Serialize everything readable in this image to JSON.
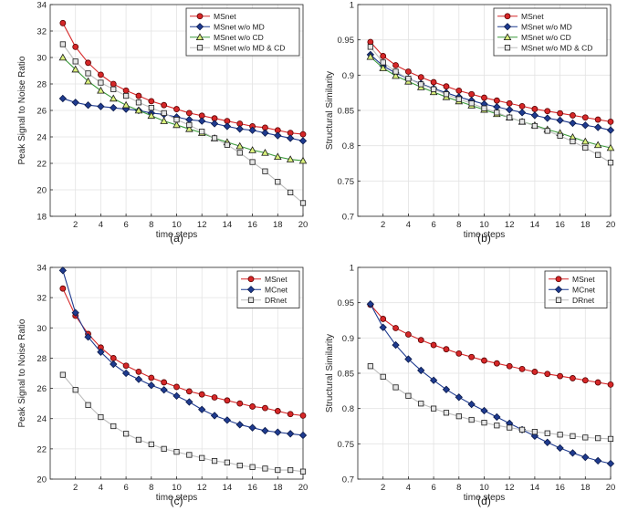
{
  "chart_data": [
    {
      "type": "line",
      "panel": "(a)",
      "xlabel": "time steps",
      "ylabel": "Peak Signal to Noise Ratio",
      "xlim": [
        0,
        20
      ],
      "ylim": [
        18,
        34
      ],
      "xticks": [
        2,
        4,
        6,
        8,
        10,
        12,
        14,
        16,
        18,
        20
      ],
      "yticks": [
        18,
        20,
        22,
        24,
        26,
        28,
        30,
        32,
        34
      ],
      "grid": true,
      "legend": "top-right",
      "x": [
        1,
        2,
        3,
        4,
        5,
        6,
        7,
        8,
        9,
        10,
        11,
        12,
        13,
        14,
        15,
        16,
        17,
        18,
        19,
        20
      ],
      "series": [
        {
          "name": "MSnet",
          "color": "#d62728",
          "marker": "circle",
          "fill": "#d62728",
          "values": [
            32.6,
            30.8,
            29.6,
            28.7,
            28.0,
            27.5,
            27.1,
            26.7,
            26.4,
            26.1,
            25.8,
            25.6,
            25.4,
            25.2,
            25.0,
            24.8,
            24.7,
            24.5,
            24.3,
            24.2
          ]
        },
        {
          "name": "MSnet w/o MD",
          "color": "#1f3b8f",
          "marker": "diamond",
          "fill": "#1f3b8f",
          "values": [
            26.9,
            26.6,
            26.4,
            26.3,
            26.2,
            26.1,
            26.0,
            25.8,
            25.7,
            25.5,
            25.3,
            25.2,
            25.0,
            24.8,
            24.6,
            24.5,
            24.3,
            24.1,
            23.9,
            23.7
          ]
        },
        {
          "name": "MSnet w/o CD",
          "color": "#3a9a3a",
          "marker": "triangle",
          "fill": "#d9f07c",
          "values": [
            30.0,
            29.1,
            28.2,
            27.5,
            26.9,
            26.4,
            26.0,
            25.6,
            25.2,
            24.9,
            24.6,
            24.3,
            23.9,
            23.6,
            23.3,
            23.0,
            22.8,
            22.5,
            22.3,
            22.2
          ]
        },
        {
          "name": "MSnet w/o MD & CD",
          "color": "#bdbdbd",
          "marker": "square",
          "fill": "#e6e6e6",
          "values": [
            31.0,
            29.7,
            28.8,
            28.1,
            27.6,
            27.1,
            26.6,
            26.2,
            25.8,
            25.3,
            24.9,
            24.4,
            23.9,
            23.4,
            22.8,
            22.1,
            21.4,
            20.6,
            19.8,
            19.0
          ]
        }
      ]
    },
    {
      "type": "line",
      "panel": "(b)",
      "xlabel": "time steps",
      "ylabel": "Structural Similarity",
      "xlim": [
        0,
        20
      ],
      "ylim": [
        0.7,
        1.0
      ],
      "xticks": [
        2,
        4,
        6,
        8,
        10,
        12,
        14,
        16,
        18,
        20
      ],
      "yticks": [
        0.7,
        0.75,
        0.8,
        0.85,
        0.9,
        0.95,
        1.0
      ],
      "ytick_labels": [
        "0.7",
        "0.75",
        "0.8",
        "0.85",
        "0.9",
        "0.95",
        "1"
      ],
      "grid": true,
      "legend": "top-right",
      "x": [
        1,
        2,
        3,
        4,
        5,
        6,
        7,
        8,
        9,
        10,
        11,
        12,
        13,
        14,
        15,
        16,
        17,
        18,
        19,
        20
      ],
      "series": [
        {
          "name": "MSnet",
          "color": "#d62728",
          "marker": "circle",
          "fill": "#d62728",
          "values": [
            0.947,
            0.927,
            0.914,
            0.905,
            0.897,
            0.89,
            0.884,
            0.878,
            0.873,
            0.868,
            0.864,
            0.86,
            0.856,
            0.852,
            0.849,
            0.846,
            0.843,
            0.84,
            0.837,
            0.834
          ]
        },
        {
          "name": "MSnet w/o MD",
          "color": "#1f3b8f",
          "marker": "diamond",
          "fill": "#1f3b8f",
          "values": [
            0.929,
            0.913,
            0.903,
            0.895,
            0.888,
            0.881,
            0.875,
            0.869,
            0.864,
            0.859,
            0.855,
            0.851,
            0.847,
            0.843,
            0.839,
            0.836,
            0.832,
            0.829,
            0.826,
            0.822
          ]
        },
        {
          "name": "MSnet w/o CD",
          "color": "#3a9a3a",
          "marker": "triangle",
          "fill": "#d9f07c",
          "values": [
            0.926,
            0.91,
            0.899,
            0.891,
            0.883,
            0.876,
            0.869,
            0.863,
            0.857,
            0.851,
            0.845,
            0.84,
            0.834,
            0.829,
            0.823,
            0.818,
            0.812,
            0.806,
            0.801,
            0.797
          ]
        },
        {
          "name": "MSnet w/o MD & CD",
          "color": "#bdbdbd",
          "marker": "square",
          "fill": "#e6e6e6",
          "values": [
            0.94,
            0.918,
            0.905,
            0.895,
            0.887,
            0.88,
            0.873,
            0.866,
            0.86,
            0.853,
            0.847,
            0.84,
            0.834,
            0.828,
            0.821,
            0.814,
            0.806,
            0.797,
            0.787,
            0.776
          ]
        }
      ]
    },
    {
      "type": "line",
      "panel": "(c)",
      "xlabel": "time steps",
      "ylabel": "Peak Signal to Noise Ratio",
      "xlim": [
        0,
        20
      ],
      "ylim": [
        20,
        34
      ],
      "xticks": [
        2,
        4,
        6,
        8,
        10,
        12,
        14,
        16,
        18,
        20
      ],
      "yticks": [
        20,
        22,
        24,
        26,
        28,
        30,
        32,
        34
      ],
      "grid": true,
      "legend": "top-right",
      "x": [
        1,
        2,
        3,
        4,
        5,
        6,
        7,
        8,
        9,
        10,
        11,
        12,
        13,
        14,
        15,
        16,
        17,
        18,
        19,
        20
      ],
      "series": [
        {
          "name": "MSnet",
          "color": "#d62728",
          "marker": "circle",
          "fill": "#d62728",
          "values": [
            32.6,
            30.8,
            29.6,
            28.7,
            28.0,
            27.5,
            27.1,
            26.7,
            26.4,
            26.1,
            25.8,
            25.6,
            25.4,
            25.2,
            25.0,
            24.8,
            24.7,
            24.5,
            24.3,
            24.2
          ]
        },
        {
          "name": "MCnet",
          "color": "#1f3b8f",
          "marker": "diamond",
          "fill": "#1f3b8f",
          "values": [
            33.8,
            31.0,
            29.4,
            28.4,
            27.6,
            27.0,
            26.6,
            26.2,
            25.9,
            25.5,
            25.1,
            24.6,
            24.2,
            23.9,
            23.6,
            23.4,
            23.2,
            23.1,
            23.0,
            22.9
          ]
        },
        {
          "name": "DRnet",
          "color": "#bdbdbd",
          "marker": "square",
          "fill": "#e6e6e6",
          "values": [
            26.9,
            25.9,
            24.9,
            24.1,
            23.5,
            23.0,
            22.6,
            22.3,
            22.0,
            21.8,
            21.6,
            21.4,
            21.2,
            21.1,
            20.9,
            20.8,
            20.7,
            20.6,
            20.6,
            20.5
          ]
        }
      ]
    },
    {
      "type": "line",
      "panel": "(d)",
      "xlabel": "time steps",
      "ylabel": "Structural Similarity",
      "xlim": [
        0,
        20
      ],
      "ylim": [
        0.7,
        1.0
      ],
      "xticks": [
        2,
        4,
        6,
        8,
        10,
        12,
        14,
        16,
        18,
        20
      ],
      "yticks": [
        0.7,
        0.75,
        0.8,
        0.85,
        0.9,
        0.95,
        1.0
      ],
      "ytick_labels": [
        "0.7",
        "0.75",
        "0.8",
        "0.85",
        "0.9",
        "0.95",
        "1"
      ],
      "grid": true,
      "legend": "top-right",
      "x": [
        1,
        2,
        3,
        4,
        5,
        6,
        7,
        8,
        9,
        10,
        11,
        12,
        13,
        14,
        15,
        16,
        17,
        18,
        19,
        20
      ],
      "series": [
        {
          "name": "MSnet",
          "color": "#d62728",
          "marker": "circle",
          "fill": "#d62728",
          "values": [
            0.947,
            0.927,
            0.914,
            0.905,
            0.897,
            0.89,
            0.884,
            0.878,
            0.873,
            0.868,
            0.864,
            0.86,
            0.856,
            0.852,
            0.849,
            0.846,
            0.843,
            0.84,
            0.837,
            0.834
          ]
        },
        {
          "name": "MCnet",
          "color": "#1f3b8f",
          "marker": "diamond",
          "fill": "#1f3b8f",
          "values": [
            0.948,
            0.915,
            0.89,
            0.87,
            0.854,
            0.84,
            0.827,
            0.816,
            0.806,
            0.797,
            0.788,
            0.779,
            0.77,
            0.761,
            0.752,
            0.744,
            0.737,
            0.731,
            0.726,
            0.722
          ]
        },
        {
          "name": "DRnet",
          "color": "#bdbdbd",
          "marker": "square",
          "fill": "#e6e6e6",
          "values": [
            0.86,
            0.845,
            0.83,
            0.818,
            0.807,
            0.8,
            0.794,
            0.789,
            0.784,
            0.78,
            0.776,
            0.773,
            0.77,
            0.767,
            0.765,
            0.763,
            0.761,
            0.759,
            0.758,
            0.757
          ]
        }
      ]
    }
  ]
}
